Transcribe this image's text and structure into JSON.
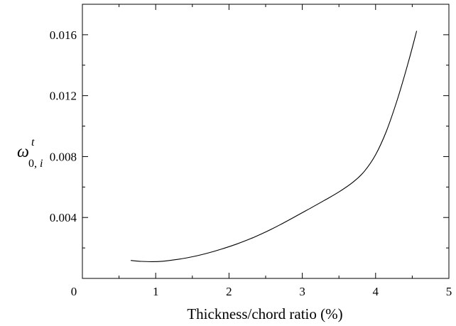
{
  "chart_data": {
    "type": "line",
    "title": "",
    "xlabel": "Thickness/chord ratio (%)",
    "ylabel": {
      "symbol": "ω",
      "superscript": "t",
      "subscript_main": "0,",
      "subscript_italic": "i"
    },
    "xlim": [
      0,
      5
    ],
    "ylim": [
      0,
      0.018
    ],
    "xticks": [
      0,
      1,
      2,
      3,
      4,
      5
    ],
    "xtick_labels": [
      "0",
      "1",
      "2",
      "3",
      "4",
      "5"
    ],
    "yticks": [
      0.004,
      0.008,
      0.012,
      0.016
    ],
    "ytick_labels": [
      "0.004",
      "0.008",
      "0.012",
      "0.016"
    ],
    "grid": false,
    "series": [
      {
        "x": [
          0.66,
          0.8,
          0.95,
          1.1,
          1.3,
          1.5,
          1.7,
          1.9,
          2.1,
          2.3,
          2.5,
          2.7,
          2.9,
          3.1,
          3.3,
          3.5,
          3.7,
          3.85,
          4.0,
          4.15,
          4.3,
          4.45,
          4.56
        ],
        "y": [
          0.00118,
          0.00112,
          0.0011,
          0.00113,
          0.00125,
          0.00142,
          0.00165,
          0.00193,
          0.00225,
          0.00262,
          0.00305,
          0.00353,
          0.00405,
          0.00458,
          0.00512,
          0.00568,
          0.00635,
          0.00705,
          0.00812,
          0.0097,
          0.0118,
          0.01425,
          0.01625
        ]
      }
    ]
  }
}
